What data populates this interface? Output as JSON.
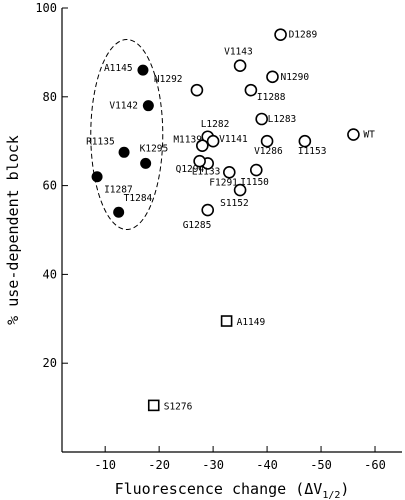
{
  "chart_data": {
    "type": "scatter",
    "title": "",
    "xlabel": "Fluorescence change (ΔV",
    "xlabel_sub": "1/2",
    "xlabel_close": ")",
    "ylabel": "% use-dependent block",
    "xlim": [
      -2,
      -65
    ],
    "ylim": [
      0,
      100
    ],
    "xticks": [
      -10,
      -20,
      -30,
      -40,
      -50,
      -60
    ],
    "yticks": [
      20,
      40,
      60,
      80,
      100
    ],
    "series": [
      {
        "marker": "filled-circle",
        "color": "#000000",
        "points": [
          {
            "label": "A1145",
            "x": -17,
            "y": 86
          },
          {
            "label": "V1142",
            "x": -18,
            "y": 78
          },
          {
            "label": "R1135",
            "x": -13.5,
            "y": 67.5
          },
          {
            "label": "K1295",
            "x": -17.5,
            "y": 65
          },
          {
            "label": "I1287",
            "x": -8.5,
            "y": 62
          },
          {
            "label": "T1284",
            "x": -12.5,
            "y": 54
          }
        ]
      },
      {
        "marker": "open-circle",
        "color": "#000000",
        "points": [
          {
            "label": "D1289",
            "x": -42.5,
            "y": 94
          },
          {
            "label": "V1143",
            "x": -35,
            "y": 87
          },
          {
            "label": "N1290",
            "x": -41,
            "y": 84.5
          },
          {
            "label": "N1292",
            "x": -27,
            "y": 81.5
          },
          {
            "label": "I1288",
            "x": -37,
            "y": 81.5
          },
          {
            "label": "L1283",
            "x": -39,
            "y": 75
          },
          {
            "label": "WT",
            "x": -56,
            "y": 71.5
          },
          {
            "label": "L1282",
            "x": -29,
            "y": 71
          },
          {
            "label": "M1139",
            "x": -28,
            "y": 69
          },
          {
            "label": "V1141",
            "x": -30,
            "y": 70
          },
          {
            "label": "I1153",
            "x": -47,
            "y": 70
          },
          {
            "label": "V1286",
            "x": -40,
            "y": 70
          },
          {
            "label": "L1133",
            "x": -29,
            "y": 65
          },
          {
            "label": "Q1294",
            "x": -27.5,
            "y": 65.5
          },
          {
            "label": "F1291",
            "x": -33,
            "y": 63
          },
          {
            "label": "I1150",
            "x": -38,
            "y": 63.5
          },
          {
            "label": "S1152",
            "x": -35,
            "y": 59
          },
          {
            "label": "G1285",
            "x": -29,
            "y": 54.5
          }
        ]
      },
      {
        "marker": "open-square",
        "color": "#000000",
        "points": [
          {
            "label": "A1149",
            "x": -32.5,
            "y": 29.5
          },
          {
            "label": "S1276",
            "x": -19,
            "y": 10.5
          }
        ]
      }
    ],
    "annotations": [
      {
        "type": "dashed-ellipse",
        "encloses": "filled-circle series"
      }
    ]
  }
}
